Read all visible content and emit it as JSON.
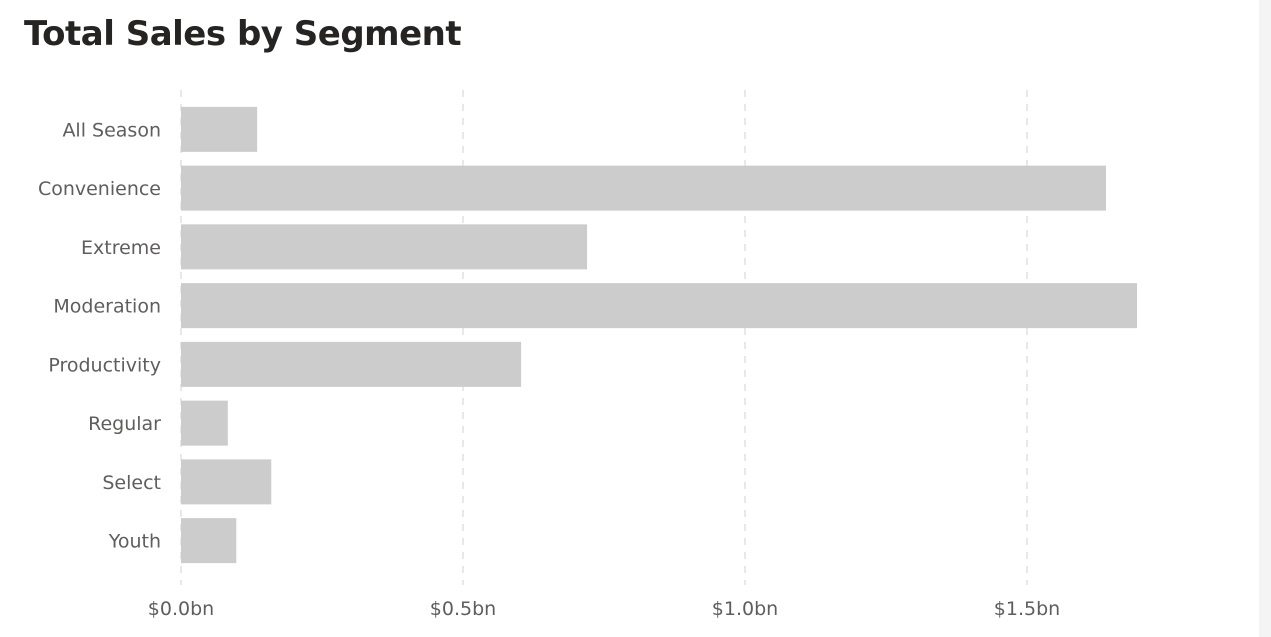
{
  "chart_data": {
    "type": "bar",
    "orientation": "horizontal",
    "title": "Total Sales by Segment",
    "xlabel": "",
    "ylabel": "",
    "categories": [
      "All Season",
      "Convenience",
      "Extreme",
      "Moderation",
      "Productivity",
      "Regular",
      "Select",
      "Youth"
    ],
    "values": [
      0.135,
      1.64,
      0.72,
      1.695,
      0.603,
      0.083,
      0.16,
      0.098
    ],
    "value_unit": "$ billions",
    "xlim": [
      0,
      1.8
    ],
    "xticks": [
      0,
      0.5,
      1.0,
      1.5
    ],
    "xtick_labels": [
      "$0.0bn",
      "$0.5bn",
      "$1.0bn",
      "$1.5bn"
    ],
    "grid": "vertical dashed",
    "legend": "none",
    "colors": {
      "bar": "#cccccc",
      "grid": "#e1e1e1",
      "text": "#605e5c",
      "title": "#252423"
    }
  }
}
